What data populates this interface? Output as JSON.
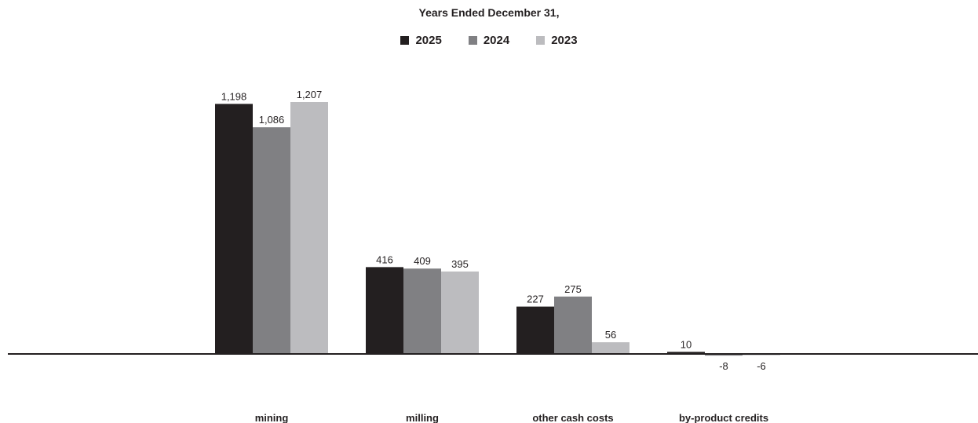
{
  "chart_data": {
    "type": "bar",
    "title": "Years Ended December 31,",
    "xlabel": "",
    "ylabel": "",
    "categories": [
      "mining",
      "milling",
      "other cash costs",
      "by-product credits"
    ],
    "series": [
      {
        "name": "2025",
        "color": "#231f20",
        "values": [
          1198,
          416,
          227,
          10
        ]
      },
      {
        "name": "2024",
        "color": "#808083",
        "values": [
          1086,
          409,
          275,
          -8
        ]
      },
      {
        "name": "2023",
        "color": "#bcbcbf",
        "values": [
          1207,
          395,
          56,
          -6
        ]
      }
    ],
    "data_labels": [
      [
        "1,198",
        "416",
        "227",
        "10"
      ],
      [
        "1,086",
        "409",
        "275",
        "-8"
      ],
      [
        "1,207",
        "395",
        "56",
        "-6"
      ]
    ],
    "ylim": [
      -10,
      1207
    ],
    "grid": false,
    "legend_position": "top-center",
    "axis_color": "#231f20"
  }
}
